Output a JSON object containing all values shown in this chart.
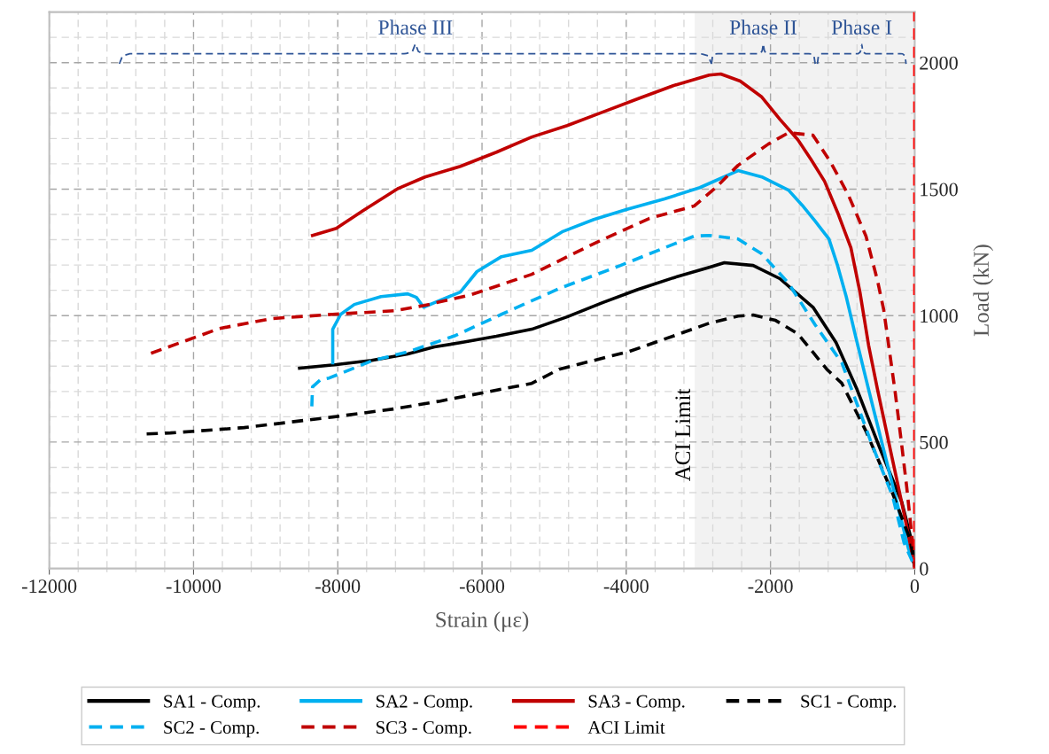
{
  "chart_data": {
    "type": "line",
    "xlabel": "Strain (με)",
    "ylabel": "Load (kN)",
    "xlim": [
      -12000,
      0
    ],
    "ylim": [
      0,
      2200
    ],
    "xticks": [
      -12000,
      -10000,
      -8000,
      -6000,
      -4000,
      -2000,
      0
    ],
    "yticks": [
      0,
      500,
      1000,
      1500,
      2000
    ],
    "grid": true,
    "legend": "bottom",
    "marker": "none",
    "series": [
      {
        "name": "SA1 - Comp.",
        "color": "#000000",
        "line_style": "solid",
        "x": [
          -8530,
          -8020,
          -7530,
          -7030,
          -6660,
          -6300,
          -5800,
          -5310,
          -4820,
          -4330,
          -3840,
          -3350,
          -2850,
          -2640,
          -2240,
          -1870,
          -1410,
          -1090,
          -800,
          -480,
          -180,
          -25,
          0
        ],
        "values": [
          792,
          806,
          823,
          848,
          876,
          893,
          918,
          946,
          995,
          1051,
          1103,
          1149,
          1191,
          1209,
          1198,
          1146,
          1033,
          893,
          708,
          473,
          263,
          88,
          7
        ]
      },
      {
        "name": "SA2 - Comp.",
        "color": "#00b0f0",
        "line_style": "solid",
        "x": [
          -8070,
          -8070,
          -7960,
          -7770,
          -7400,
          -7030,
          -6910,
          -6810,
          -6660,
          -6300,
          -6070,
          -5730,
          -5310,
          -4890,
          -4450,
          -4000,
          -3470,
          -2980,
          -2450,
          -2120,
          -1750,
          -1560,
          -1380,
          -1190,
          -1070,
          -950,
          -820,
          -640,
          -455,
          -270,
          -86,
          0
        ],
        "values": [
          813,
          946,
          1005,
          1044,
          1075,
          1086,
          1072,
          1033,
          1051,
          1093,
          1174,
          1233,
          1258,
          1331,
          1380,
          1419,
          1461,
          1506,
          1573,
          1548,
          1496,
          1436,
          1373,
          1303,
          1198,
          1075,
          918,
          708,
          497,
          287,
          77,
          14
        ]
      },
      {
        "name": "SA3 - Comp.",
        "color": "#c00000",
        "line_style": "solid",
        "x": [
          -8350,
          -8020,
          -7650,
          -7160,
          -6790,
          -6300,
          -5800,
          -5310,
          -4820,
          -4330,
          -3840,
          -3350,
          -2850,
          -2690,
          -2420,
          -2120,
          -1870,
          -1620,
          -1440,
          -1250,
          -1070,
          -885,
          -760,
          -640,
          -516,
          -332,
          -148,
          0
        ],
        "values": [
          1317,
          1345,
          1415,
          1503,
          1548,
          1590,
          1646,
          1706,
          1751,
          1804,
          1857,
          1909,
          1951,
          1955,
          1927,
          1864,
          1776,
          1695,
          1618,
          1531,
          1408,
          1268,
          1093,
          883,
          708,
          462,
          217,
          7
        ]
      },
      {
        "name": "SC1 - Comp.",
        "color": "#000000",
        "line_style": "dashed",
        "x": [
          -10650,
          -10320,
          -9300,
          -8070,
          -7220,
          -6580,
          -5950,
          -5310,
          -4930,
          -3960,
          -3260,
          -2850,
          -2450,
          -2240,
          -1930,
          -1620,
          -1220,
          -1010,
          -676,
          -308,
          -61,
          0
        ],
        "values": [
          532,
          536,
          557,
          599,
          631,
          662,
          697,
          732,
          788,
          858,
          928,
          970,
          998,
          1002,
          981,
          928,
          788,
          732,
          543,
          298,
          112,
          7
        ]
      },
      {
        "name": "SC2 - Comp.",
        "color": "#00b0f0",
        "line_style": "dashed",
        "x": [
          -8360,
          -8350,
          -8240,
          -8120,
          -7510,
          -7010,
          -6370,
          -5730,
          -4930,
          -4080,
          -3470,
          -3060,
          -2850,
          -2450,
          -2120,
          -1750,
          -1380,
          -1010,
          -602,
          -308,
          -148,
          0
        ],
        "values": [
          641,
          718,
          746,
          753,
          823,
          858,
          921,
          1005,
          1107,
          1198,
          1268,
          1314,
          1317,
          1303,
          1244,
          1128,
          963,
          813,
          497,
          287,
          102,
          7
        ]
      },
      {
        "name": "SC3 - Comp.",
        "color": "#c00000",
        "line_style": "dashed",
        "x": [
          -10590,
          -9640,
          -8920,
          -8070,
          -7220,
          -6800,
          -6160,
          -5310,
          -4490,
          -3680,
          -3060,
          -2770,
          -2450,
          -2030,
          -1750,
          -1410,
          -1170,
          -922,
          -676,
          -516,
          -430,
          -271,
          -184,
          -111,
          -25
        ],
        "values": [
          851,
          949,
          988,
          1005,
          1019,
          1040,
          1082,
          1163,
          1279,
          1384,
          1433,
          1503,
          1594,
          1678,
          1723,
          1713,
          1608,
          1478,
          1314,
          1138,
          1023,
          697,
          497,
          322,
          88
        ]
      }
    ],
    "ref_lines": [
      {
        "axis": "x",
        "value": 0,
        "label": "ACI Limit",
        "color": "#ff0000",
        "line_style": "dashed"
      }
    ],
    "bands": [
      {
        "axis": "x",
        "from": -3050,
        "to": 0,
        "label": "ACI Limit",
        "color": "#f2f2f2"
      }
    ],
    "annotations": [
      "Phase III",
      "Phase II",
      "Phase I"
    ]
  }
}
